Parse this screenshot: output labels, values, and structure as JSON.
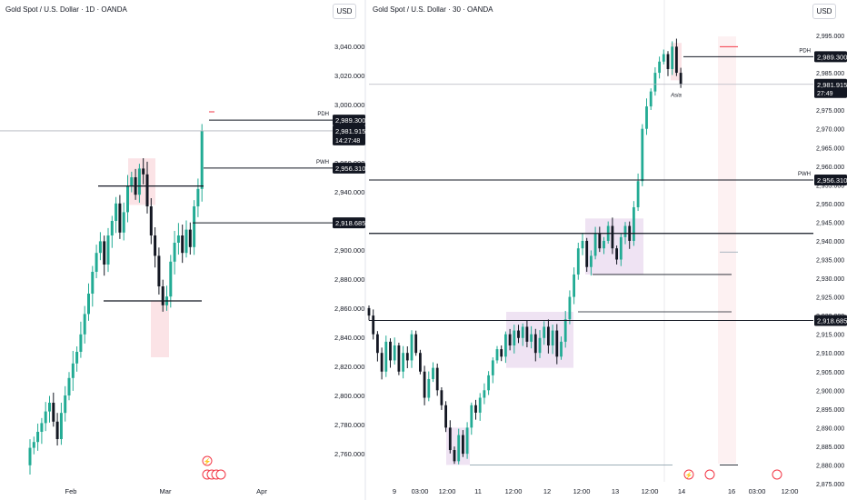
{
  "colors": {
    "up": "#22ab94",
    "down": "#131722",
    "pink_zone": "#fbe3e6",
    "purple_zone": "#efe3f3",
    "red_line": "#f23645",
    "grid_text": "#131722",
    "price_line": "#b2b5be"
  },
  "left_panel": {
    "title": "Gold Spot / U.S. Dollar · 1D · OANDA",
    "currency_label": "USD",
    "y_axis_ticks": [
      "3,040.000",
      "3,020.000",
      "3,000.000",
      "2,980.000",
      "2,960.000",
      "2,940.000",
      "2,920.000",
      "2,900.000",
      "2,880.000",
      "2,860.000",
      "2,840.000",
      "2,820.000",
      "2,800.000",
      "2,780.000",
      "2,760.000"
    ],
    "x_axis_ticks": [
      "Feb",
      "Mar",
      "Apr"
    ],
    "levels": {
      "pdh": {
        "label": "PDH",
        "value": "2,989.300"
      },
      "current": {
        "value": "2,981.915",
        "countdown": "14:27:48"
      },
      "pwh": {
        "label": "PWH",
        "value": "2,956.310"
      },
      "level3": {
        "value": "2,918.685"
      }
    },
    "event_icons": [
      "lightning-icon",
      "us-flag-icon",
      "us-flag-icon",
      "us-flag-icon",
      "us-flag-icon"
    ]
  },
  "right_panel": {
    "title": "Gold Spot / U.S. Dollar · 30 · OANDA",
    "currency_label": "USD",
    "y_axis_ticks": [
      "2,995.000",
      "2,990.000",
      "2,985.000",
      "2,980.000",
      "2,975.000",
      "2,970.000",
      "2,965.000",
      "2,960.000",
      "2,955.000",
      "2,950.000",
      "2,945.000",
      "2,940.000",
      "2,935.000",
      "2,930.000",
      "2,925.000",
      "2,920.000",
      "2,915.000",
      "2,910.000",
      "2,905.000",
      "2,900.000",
      "2,895.000",
      "2,890.000",
      "2,885.000",
      "2,880.000",
      "2,875.000"
    ],
    "x_axis_ticks": [
      "9",
      "03:00",
      "12:00",
      "11",
      "12:00",
      "12",
      "12:00",
      "13",
      "12:00",
      "14",
      "16",
      "03:00",
      "12:00"
    ],
    "levels": {
      "pdh": {
        "label": "PDH",
        "value": "2,989.300"
      },
      "current": {
        "value": "2,981.915",
        "countdown": "27:49"
      },
      "pwh": {
        "label": "PWH",
        "value": "2,956.310"
      },
      "level3": {
        "value": "2,918.685"
      }
    },
    "session_label": "Asia",
    "event_icons": [
      "lightning-icon",
      "us-flag-icon",
      "us-flag-icon"
    ]
  }
}
